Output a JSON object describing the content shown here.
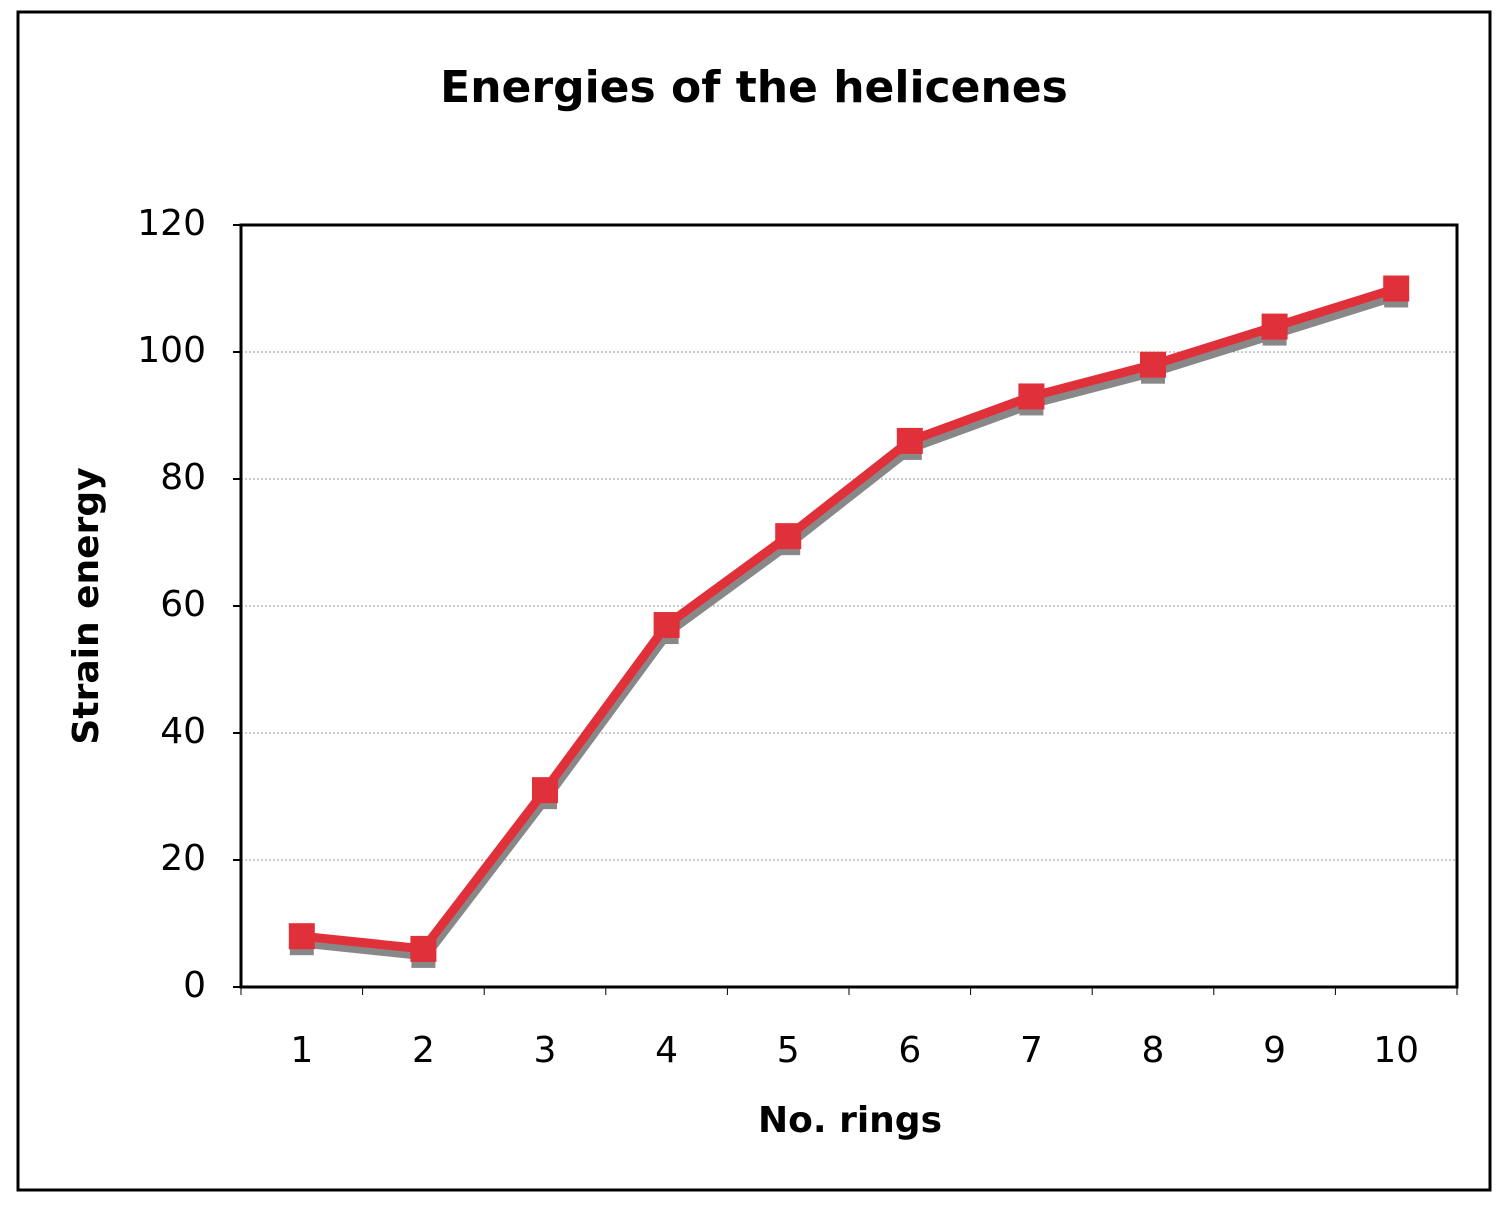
{
  "chart_data": {
    "type": "line",
    "title": "Energies of the helicenes",
    "x_label": "No. rings",
    "y_label": "Strain  energy",
    "categories": [
      "1",
      "2",
      "3",
      "4",
      "5",
      "6",
      "7",
      "8",
      "9",
      "10"
    ],
    "series": [
      {
        "name": "Strain energy",
        "color": "#e0303a",
        "values": [
          8,
          6,
          31,
          57,
          71,
          86,
          93,
          98,
          104,
          110
        ]
      }
    ],
    "ylim": [
      0,
      120
    ],
    "yticks": [
      0,
      20,
      40,
      60,
      80,
      100,
      120
    ],
    "grid": true
  }
}
